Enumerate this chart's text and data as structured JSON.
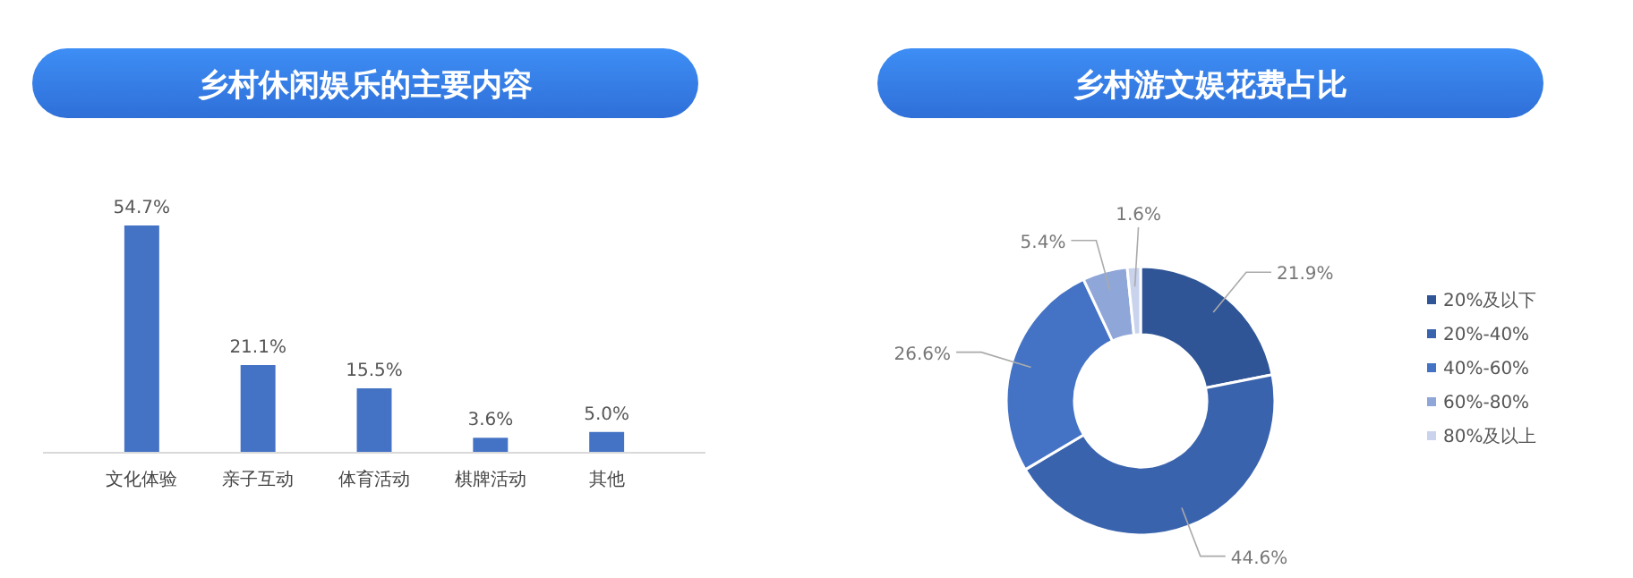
{
  "chart_data": [
    {
      "type": "bar",
      "title": "乡村休闲娱乐的主要内容",
      "categories": [
        "文化体验",
        "亲子互动",
        "体育活动",
        "棋牌活动",
        "其他"
      ],
      "values": [
        54.7,
        21.1,
        15.5,
        3.6,
        5.0
      ],
      "value_labels": [
        "54.7%",
        "21.1%",
        "15.5%",
        "3.6%",
        "5.0%"
      ],
      "color": "#4472c4"
    },
    {
      "type": "donut",
      "title": "乡村游文娱花费占比",
      "categories": [
        "20%及以下",
        "20%-40%",
        "40%-60%",
        "60%-80%",
        "80%及以上"
      ],
      "values": [
        21.9,
        44.6,
        26.6,
        5.4,
        1.6
      ],
      "value_labels": [
        "21.9%",
        "44.6%",
        "26.6%",
        "5.4%",
        "1.6%"
      ],
      "colors": [
        "#2f5597",
        "#3a63ae",
        "#4472c4",
        "#8fa6d8",
        "#c9d3ec"
      ],
      "legend": "right"
    }
  ]
}
